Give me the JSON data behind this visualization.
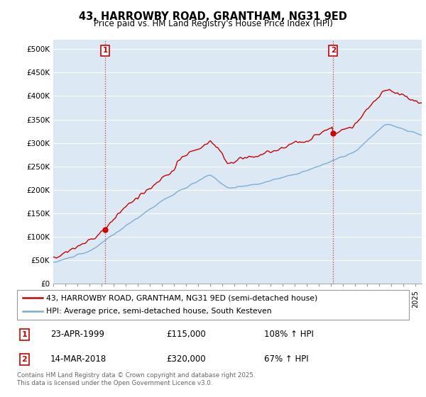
{
  "title": "43, HARROWBY ROAD, GRANTHAM, NG31 9ED",
  "subtitle": "Price paid vs. HM Land Registry's House Price Index (HPI)",
  "ylabel_ticks": [
    "£0",
    "£50K",
    "£100K",
    "£150K",
    "£200K",
    "£250K",
    "£300K",
    "£350K",
    "£400K",
    "£450K",
    "£500K"
  ],
  "ytick_values": [
    0,
    50000,
    100000,
    150000,
    200000,
    250000,
    300000,
    350000,
    400000,
    450000,
    500000
  ],
  "ylim": [
    0,
    520000
  ],
  "xlim_start": 1995.0,
  "xlim_end": 2025.5,
  "hpi_color": "#7eadd4",
  "price_color": "#cc0000",
  "background_color": "#ffffff",
  "chart_bg_color": "#dce9f5",
  "grid_color": "#ffffff",
  "sale1_x": 1999.29,
  "sale1_y": 115000,
  "sale1_label": "1",
  "sale1_date": "23-APR-1999",
  "sale1_price": "£115,000",
  "sale1_hpi": "108% ↑ HPI",
  "sale2_x": 2018.17,
  "sale2_y": 320000,
  "sale2_label": "2",
  "sale2_date": "14-MAR-2018",
  "sale2_price": "£320,000",
  "sale2_hpi": "67% ↑ HPI",
  "legend_line1": "43, HARROWBY ROAD, GRANTHAM, NG31 9ED (semi-detached house)",
  "legend_line2": "HPI: Average price, semi-detached house, South Kesteven",
  "footnote": "Contains HM Land Registry data © Crown copyright and database right 2025.\nThis data is licensed under the Open Government Licence v3.0.",
  "vline_color": "#cc0000",
  "marker_color": "#cc0000"
}
